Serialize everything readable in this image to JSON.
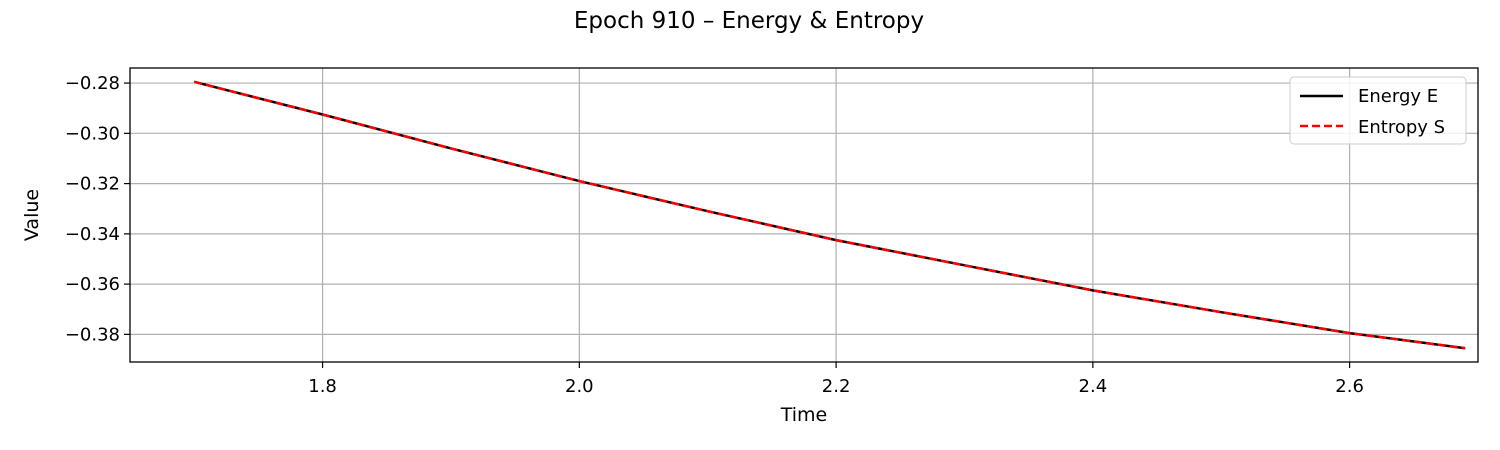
{
  "chart_data": {
    "type": "line",
    "title": "Epoch 910 – Energy & Entropy",
    "xlabel": "Time",
    "ylabel": "Value",
    "xlim": [
      1.65,
      2.7
    ],
    "ylim": [
      -0.391,
      -0.274
    ],
    "xticks": [
      1.8,
      2.0,
      2.2,
      2.4,
      2.6
    ],
    "xtick_labels": [
      "1.8",
      "2.0",
      "2.2",
      "2.4",
      "2.6"
    ],
    "yticks": [
      -0.28,
      -0.3,
      -0.32,
      -0.34,
      -0.36,
      -0.38
    ],
    "ytick_labels": [
      "−0.28",
      "−0.30",
      "−0.32",
      "−0.34",
      "−0.36",
      "−0.38"
    ],
    "grid": true,
    "legend_position": "top-right",
    "x": [
      1.7,
      1.8,
      1.9,
      2.0,
      2.1,
      2.2,
      2.3,
      2.4,
      2.5,
      2.6,
      2.69
    ],
    "series": [
      {
        "name": "Energy E",
        "color": "#000000",
        "style": "solid",
        "values": [
          -0.2795,
          -0.2925,
          -0.306,
          -0.319,
          -0.331,
          -0.3425,
          -0.3525,
          -0.3625,
          -0.3712,
          -0.3795,
          -0.3855
        ]
      },
      {
        "name": "Entropy S",
        "color": "#ff0000",
        "style": "dashed",
        "values": [
          -0.2795,
          -0.2925,
          -0.306,
          -0.319,
          -0.331,
          -0.3425,
          -0.3525,
          -0.3625,
          -0.3712,
          -0.3795,
          -0.3855
        ]
      }
    ]
  }
}
